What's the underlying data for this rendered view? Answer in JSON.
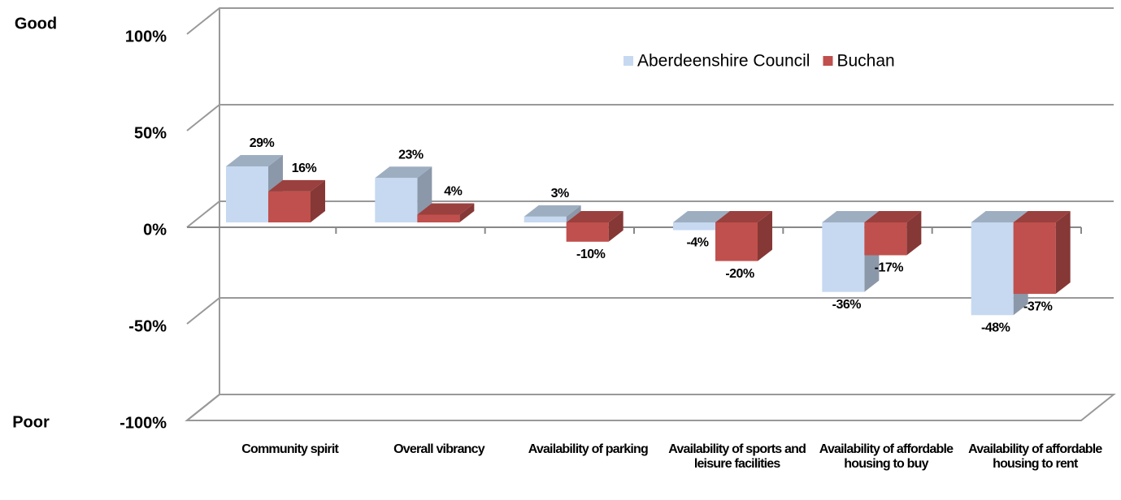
{
  "chart_data": {
    "type": "bar3d",
    "annotations": {
      "top": "Good",
      "bottom": "Poor"
    },
    "categories": [
      "Community spirit",
      "Overall vibrancy",
      "Availability of parking",
      "Availability of sports and leisure facilities",
      "Availability of affordable housing to buy",
      "Availability of affordable housing to rent"
    ],
    "series": [
      {
        "name": "Aberdeenshire Council",
        "color": "#c6d9f1",
        "values": [
          29,
          23,
          3,
          -4,
          -36,
          -48
        ],
        "value_labels": [
          "29%",
          "23%",
          "3%",
          "-4%",
          "-36%",
          "-48%"
        ]
      },
      {
        "name": "Buchan",
        "color": "#c0504d",
        "values": [
          16,
          4,
          -10,
          -20,
          -17,
          -37
        ],
        "value_labels": [
          "16%",
          "4%",
          "-10%",
          "-20%",
          "-17%",
          "-37%"
        ]
      }
    ],
    "ylim": [
      -100,
      100
    ],
    "yticks": [
      {
        "value": -100,
        "label": "-100%"
      },
      {
        "value": -50,
        "label": "-50%"
      },
      {
        "value": 0,
        "label": "0%"
      },
      {
        "value": 50,
        "label": "50%"
      },
      {
        "value": 100,
        "label": "100%"
      }
    ],
    "grid": true
  }
}
